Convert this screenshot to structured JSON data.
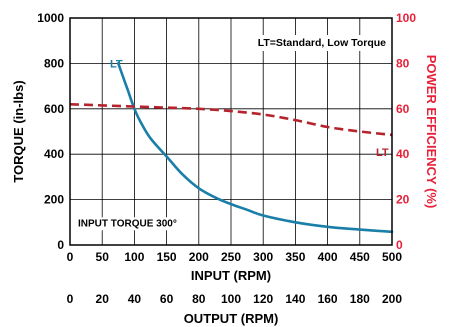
{
  "colors": {
    "torque_curve": "#1a7fa8",
    "efficiency_curve": "#b5242c",
    "left_axis": "#000000",
    "right_axis": "#e8213a",
    "grid": "#000000",
    "background": "#ffffff"
  },
  "chart_data": {
    "type": "line",
    "grid": true,
    "legend": "top-right",
    "legend_text": "LT=Standard, Low Torque",
    "annotation": "INPUT TORQUE 300°",
    "x_axis": {
      "label": "INPUT (RPM)",
      "range": [
        0,
        500
      ],
      "ticks": [
        0,
        50,
        100,
        150,
        200,
        250,
        300,
        350,
        400,
        450,
        500
      ]
    },
    "x2_axis": {
      "label": "OUTPUT (RPM)",
      "ticks": [
        0,
        20,
        40,
        60,
        80,
        100,
        120,
        140,
        160,
        180,
        200
      ]
    },
    "y_left_axis": {
      "label": "TORQUE (in-lbs)",
      "range": [
        0,
        1000
      ],
      "ticks": [
        0,
        200,
        400,
        600,
        800,
        1000
      ]
    },
    "y_right_axis": {
      "label": "POWER EFFICIENCY (%)",
      "range": [
        0,
        100
      ],
      "ticks": [
        0,
        20,
        40,
        60,
        80,
        100
      ]
    },
    "series": [
      {
        "name": "LT",
        "axis": "left",
        "style": "solid",
        "x": [
          75,
          80,
          90,
          100,
          110,
          125,
          150,
          175,
          200,
          225,
          250,
          275,
          300,
          350,
          400,
          450,
          500
        ],
        "y": [
          800,
          760,
          680,
          600,
          540,
          470,
          390,
          310,
          250,
          210,
          180,
          155,
          130,
          100,
          80,
          68,
          58
        ]
      },
      {
        "name": "LT",
        "axis": "right",
        "style": "dashed",
        "x": [
          0,
          50,
          100,
          150,
          200,
          250,
          300,
          350,
          400,
          450,
          500
        ],
        "y": [
          62,
          61.5,
          61,
          60.5,
          60,
          59,
          57.5,
          55,
          52,
          50,
          48.5
        ]
      }
    ]
  }
}
